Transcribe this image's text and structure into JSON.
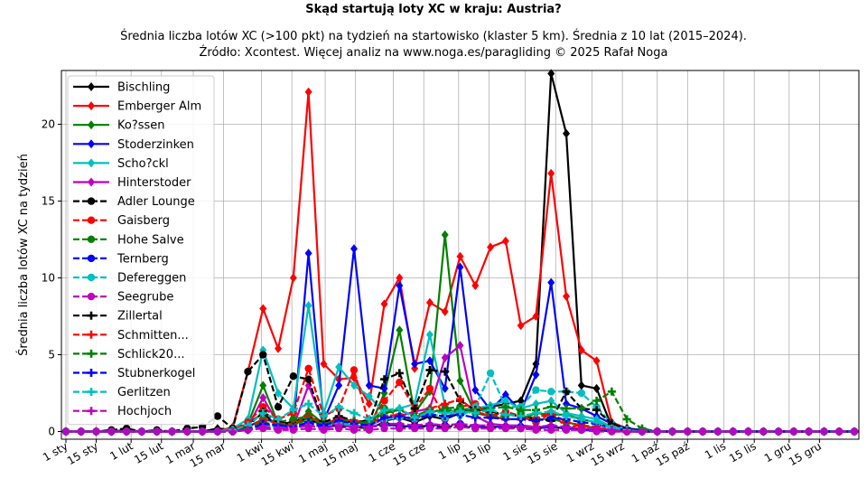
{
  "chart_data": {
    "type": "line",
    "title": "Skąd startują loty XC w kraju: Austria?",
    "subtitle_lines": [
      "Średnia liczba lotów XC (>100 pkt) na tydzień na startowisko (klaster 5 km). Średnia z 10 lat (2015–2024).",
      "Źródło: Xcontest. Więcej analiz na www.noga.es/paragliding © 2025 Rafał Noga"
    ],
    "xlabel": "",
    "ylabel": "Średnia liczba lotów XC na tydzień",
    "x_range": [
      0,
      52
    ],
    "ylim": [
      -0.5,
      23.5
    ],
    "y_ticks": [
      0,
      5,
      10,
      15,
      20
    ],
    "x_ticks": [
      {
        "week": 0,
        "label": "1 sty"
      },
      {
        "week": 2,
        "label": "15 sty"
      },
      {
        "week": 4.3,
        "label": "1 lut"
      },
      {
        "week": 6.3,
        "label": "15 lut"
      },
      {
        "week": 8.4,
        "label": "1 mar"
      },
      {
        "week": 10.4,
        "label": "15 mar"
      },
      {
        "week": 12.9,
        "label": "1 kwi"
      },
      {
        "week": 14.9,
        "label": "15 kwi"
      },
      {
        "week": 17.1,
        "label": "1 maj"
      },
      {
        "week": 19.1,
        "label": "15 maj"
      },
      {
        "week": 21.6,
        "label": "1 cze"
      },
      {
        "week": 23.6,
        "label": "15 cze"
      },
      {
        "week": 25.9,
        "label": "1 lip"
      },
      {
        "week": 27.9,
        "label": "15 lip"
      },
      {
        "week": 30.3,
        "label": "1 sie"
      },
      {
        "week": 32.3,
        "label": "15 sie"
      },
      {
        "week": 34.7,
        "label": "1 wrz"
      },
      {
        "week": 36.7,
        "label": "15 wrz"
      },
      {
        "week": 39,
        "label": "1 paź"
      },
      {
        "week": 41,
        "label": "15 paź"
      },
      {
        "week": 43.4,
        "label": "1 lis"
      },
      {
        "week": 45.4,
        "label": "15 lis"
      },
      {
        "week": 47.7,
        "label": "1 gru"
      },
      {
        "week": 49.7,
        "label": "15 gru"
      }
    ],
    "grid": true,
    "legend_position": "top-left",
    "x_weeks": [
      0,
      1,
      2,
      3,
      4,
      5,
      6,
      7,
      8,
      9,
      10,
      11,
      12,
      13,
      14,
      15,
      16,
      17,
      18,
      19,
      20,
      21,
      22,
      23,
      24,
      25,
      26,
      27,
      28,
      29,
      30,
      31,
      32,
      33,
      34,
      35,
      36,
      37,
      38,
      39,
      40,
      41,
      42,
      43,
      44,
      45,
      46,
      47,
      48,
      49,
      50,
      51,
      52
    ],
    "series": [
      {
        "name": "Bischling",
        "color": "#000000",
        "marker": "diamond",
        "dash": false,
        "values": [
          0,
          0,
          0,
          0,
          0.1,
          0,
          0,
          0,
          0,
          0,
          0.2,
          0.1,
          0.5,
          1.2,
          0.3,
          0.7,
          0.8,
          0.4,
          0.9,
          0.5,
          0.8,
          0.7,
          0.9,
          0.6,
          1.0,
          0.8,
          1.2,
          1.5,
          1.6,
          1.8,
          2.0,
          4.4,
          23.3,
          19.4,
          3.0,
          2.8,
          0.3,
          0.1,
          0.1,
          0,
          0,
          0,
          0,
          0,
          0,
          0,
          0,
          0,
          0,
          0,
          0,
          0,
          0
        ]
      },
      {
        "name": "Emberger Alm",
        "color": "#ff0000",
        "marker": "diamond",
        "dash": false,
        "values": [
          0,
          0,
          0,
          0,
          0,
          0,
          0,
          0,
          0,
          0,
          0,
          0.3,
          3.9,
          8.0,
          5.4,
          10.0,
          22.1,
          4.4,
          3.4,
          3.5,
          1.8,
          8.3,
          10.0,
          4.1,
          8.4,
          7.8,
          11.4,
          9.5,
          12.0,
          12.4,
          6.9,
          7.5,
          16.8,
          8.8,
          5.3,
          4.6,
          0.6,
          0.2,
          0.1,
          0,
          0,
          0,
          0,
          0,
          0,
          0,
          0,
          0,
          0,
          0,
          0,
          0,
          0
        ]
      },
      {
        "name": "Ko?ssen",
        "color": "#008000",
        "marker": "diamond",
        "dash": false,
        "values": [
          0,
          0,
          0,
          0,
          0,
          0,
          0,
          0,
          0,
          0,
          0,
          0.1,
          0.5,
          3.0,
          0.5,
          0.3,
          1.3,
          0.5,
          0.6,
          0.3,
          0.2,
          2.5,
          6.6,
          1.2,
          2.6,
          12.8,
          3.3,
          1.2,
          1.0,
          0.8,
          0.8,
          1.2,
          1.1,
          1.1,
          0.8,
          0.6,
          0.3,
          0.1,
          0,
          0,
          0,
          0,
          0,
          0,
          0,
          0,
          0,
          0,
          0,
          0,
          0,
          0,
          0
        ]
      },
      {
        "name": "Stoderzinken",
        "color": "#0000ff",
        "marker": "diamond",
        "dash": false,
        "values": [
          0,
          0,
          0,
          0,
          0,
          0,
          0,
          0,
          0,
          0,
          0,
          0.1,
          0.3,
          0.8,
          0.6,
          0.3,
          11.6,
          0.7,
          3.0,
          11.9,
          3.0,
          2.8,
          9.5,
          4.4,
          4.6,
          2.8,
          10.7,
          2.7,
          1.4,
          2.4,
          1.3,
          3.7,
          9.7,
          1.8,
          1.5,
          1.0,
          0.5,
          0.2,
          0.1,
          0,
          0,
          0,
          0,
          0,
          0,
          0,
          0,
          0,
          0,
          0,
          0,
          0,
          0
        ]
      },
      {
        "name": "Scho?ckl",
        "color": "#00bfbf",
        "marker": "diamond",
        "dash": false,
        "values": [
          0,
          0,
          0,
          0,
          0,
          0,
          0,
          0,
          0,
          0,
          0,
          0.2,
          0.8,
          5.3,
          2.5,
          1.5,
          8.2,
          1.2,
          4.2,
          3.0,
          2.3,
          1.2,
          1.5,
          1.8,
          6.3,
          1.7,
          1.0,
          1.5,
          1.7,
          2.0,
          1.5,
          1.8,
          2.0,
          1.2,
          1.0,
          0.8,
          0.3,
          0.1,
          0,
          0,
          0,
          0,
          0,
          0,
          0,
          0,
          0,
          0,
          0,
          0,
          0,
          0,
          0
        ]
      },
      {
        "name": "Hinterstoder",
        "color": "#bf00bf",
        "marker": "diamond",
        "dash": false,
        "values": [
          0,
          0,
          0,
          0,
          0,
          0,
          0,
          0,
          0,
          0,
          0,
          0.1,
          0.3,
          2.2,
          0.5,
          0.3,
          3.0,
          0.5,
          0.4,
          0.3,
          0.4,
          0.8,
          1.0,
          1.3,
          1.5,
          4.8,
          5.6,
          1.0,
          0.5,
          0.4,
          0.4,
          0.3,
          0.3,
          0.2,
          0.2,
          0.1,
          0.1,
          0,
          0,
          0,
          0,
          0,
          0,
          0,
          0,
          0,
          0,
          0,
          0,
          0,
          0,
          0,
          0
        ]
      },
      {
        "name": "Adler Lounge",
        "color": "#000000",
        "marker": "circle",
        "dash": true,
        "values": [
          0,
          0,
          0,
          0.1,
          0.2,
          0,
          0.1,
          0,
          0.2,
          0.3,
          1.0,
          0.2,
          3.9,
          5.0,
          1.6,
          3.6,
          3.4,
          0.5,
          0.3,
          0.3,
          0.2,
          0.6,
          0.3,
          0.4,
          0.3,
          0.3,
          0.4,
          0.2,
          0.3,
          0.3,
          0.2,
          0.2,
          0.3,
          0.2,
          0.1,
          0.1,
          0.1,
          0,
          0,
          0,
          0,
          0,
          0,
          0,
          0,
          0,
          0,
          0,
          0,
          0,
          0,
          0,
          0
        ]
      },
      {
        "name": "Gaisberg",
        "color": "#ff0000",
        "marker": "circle",
        "dash": true,
        "values": [
          0,
          0,
          0,
          0,
          0,
          0,
          0,
          0,
          0,
          0,
          0,
          0.1,
          0.6,
          1.6,
          0.8,
          1.2,
          4.1,
          1.0,
          1.5,
          4.0,
          0.5,
          2.0,
          3.2,
          1.5,
          2.8,
          0.8,
          1.6,
          1.8,
          1.0,
          1.3,
          1.0,
          0.6,
          1.2,
          0.3,
          0.4,
          0.2,
          0.1,
          0,
          0,
          0,
          0,
          0,
          0,
          0,
          0,
          0,
          0,
          0,
          0,
          0,
          0,
          0,
          0
        ]
      },
      {
        "name": "Hohe Salve",
        "color": "#008000",
        "marker": "circle",
        "dash": true,
        "values": [
          0,
          0,
          0,
          0,
          0,
          0,
          0,
          0,
          0,
          0,
          0,
          0.1,
          0.3,
          0.8,
          0.6,
          0.8,
          1.0,
          0.6,
          0.8,
          0.6,
          0.5,
          1.5,
          1.0,
          0.8,
          1.2,
          1.5,
          1.6,
          1.2,
          1.0,
          1.0,
          1.2,
          0.8,
          0.8,
          0.6,
          0.4,
          0.2,
          0.1,
          0,
          0,
          0,
          0,
          0,
          0,
          0,
          0,
          0,
          0,
          0,
          0,
          0,
          0,
          0,
          0
        ]
      },
      {
        "name": "Ternberg",
        "color": "#0000ff",
        "marker": "circle",
        "dash": true,
        "values": [
          0,
          0,
          0,
          0,
          0,
          0,
          0,
          0,
          0,
          0,
          0,
          0,
          0.2,
          0.5,
          0.3,
          0.2,
          0.5,
          0.3,
          0.4,
          0.3,
          0.3,
          0.4,
          0.4,
          0.3,
          0.4,
          0.4,
          0.5,
          0.3,
          0.3,
          0.3,
          0.3,
          0.2,
          0.3,
          0.2,
          0.1,
          0.1,
          0,
          0,
          0,
          0,
          0,
          0,
          0,
          0,
          0,
          0,
          0,
          0,
          0,
          0,
          0,
          0,
          0
        ]
      },
      {
        "name": "Defereggen",
        "color": "#00bfbf",
        "marker": "circle",
        "dash": true,
        "values": [
          0,
          0,
          0,
          0,
          0,
          0,
          0,
          0,
          0,
          0,
          0,
          0,
          0.2,
          0.4,
          0.3,
          0.3,
          0.6,
          0.4,
          0.5,
          0.4,
          0.4,
          0.8,
          0.9,
          0.8,
          1.2,
          0.9,
          1.4,
          1.6,
          3.8,
          1.6,
          1.6,
          2.7,
          2.6,
          2.6,
          2.5,
          1.6,
          0.5,
          0.1,
          0,
          0,
          0,
          0,
          0,
          0,
          0,
          0,
          0,
          0,
          0,
          0,
          0,
          0,
          0
        ]
      },
      {
        "name": "Seegrube",
        "color": "#bf00bf",
        "marker": "circle",
        "dash": true,
        "values": [
          0,
          0,
          0,
          0,
          0,
          0,
          0,
          0,
          0,
          0,
          0,
          0,
          0.1,
          0.2,
          0.1,
          0.1,
          0.2,
          0.1,
          0.2,
          0.1,
          0.1,
          0.2,
          0.2,
          0.2,
          0.2,
          0.2,
          0.3,
          0.2,
          0.2,
          0.2,
          0.2,
          0.1,
          0.1,
          0.1,
          0.1,
          0,
          0,
          0,
          0,
          0,
          0,
          0,
          0,
          0,
          0,
          0,
          0,
          0,
          0,
          0,
          0,
          0,
          0
        ]
      },
      {
        "name": "Zillertal",
        "color": "#000000",
        "marker": "plus",
        "dash": true,
        "values": [
          0,
          0,
          0,
          0,
          0,
          0,
          0,
          0,
          0,
          0,
          0,
          0.1,
          0.3,
          1.3,
          0.6,
          0.5,
          0.9,
          0.6,
          1.0,
          0.7,
          0.6,
          3.4,
          3.8,
          1.5,
          4.0,
          3.9,
          2.0,
          1.4,
          1.3,
          1.1,
          1.0,
          0.8,
          0.7,
          2.6,
          1.5,
          1.4,
          0.5,
          0.2,
          0,
          0,
          0,
          0,
          0,
          0,
          0,
          0,
          0,
          0,
          0,
          0,
          0,
          0,
          0
        ]
      },
      {
        "name": "Schmitten...",
        "color": "#ff0000",
        "marker": "plus",
        "dash": true,
        "values": [
          0,
          0,
          0,
          0,
          0,
          0,
          0,
          0,
          0,
          0,
          0,
          0,
          0.2,
          0.8,
          0.5,
          0.5,
          1.0,
          0.5,
          0.8,
          0.7,
          0.5,
          1.0,
          1.1,
          0.8,
          1.5,
          1.8,
          2.1,
          1.3,
          1.0,
          0.8,
          0.8,
          0.9,
          1.2,
          0.6,
          0.4,
          0.3,
          0.1,
          0,
          0,
          0,
          0,
          0,
          0,
          0,
          0,
          0,
          0,
          0,
          0,
          0,
          0,
          0,
          0
        ]
      },
      {
        "name": "Schlick20...",
        "color": "#008000",
        "marker": "plus",
        "dash": true,
        "values": [
          0,
          0,
          0,
          0,
          0,
          0,
          0,
          0,
          0,
          0,
          0,
          0,
          0.2,
          0.6,
          0.4,
          0.4,
          0.8,
          0.5,
          0.7,
          0.6,
          0.6,
          1.2,
          1.4,
          1.0,
          1.4,
          1.3,
          1.5,
          1.3,
          1.5,
          1.6,
          1.4,
          1.4,
          1.6,
          1.5,
          1.5,
          2.0,
          2.6,
          0.8,
          0.2,
          0,
          0,
          0,
          0,
          0,
          0,
          0,
          0,
          0,
          0,
          0,
          0,
          0,
          0
        ]
      },
      {
        "name": "Stubnerkogel",
        "color": "#0000ff",
        "marker": "plus",
        "dash": true,
        "values": [
          0,
          0,
          0,
          0,
          0,
          0,
          0,
          0,
          0,
          0,
          0,
          0,
          0.1,
          0.5,
          0.4,
          0.3,
          0.6,
          0.4,
          0.7,
          0.5,
          0.4,
          0.9,
          1.0,
          0.8,
          1.1,
          1.0,
          1.1,
          0.9,
          0.9,
          0.8,
          0.8,
          0.7,
          0.9,
          0.8,
          0.6,
          0.5,
          0.2,
          0.1,
          0,
          0,
          0,
          0,
          0,
          0,
          0,
          0,
          0,
          0,
          0,
          0,
          0,
          0,
          0
        ]
      },
      {
        "name": "Gerlitzen",
        "color": "#00bfbf",
        "marker": "plus",
        "dash": true,
        "values": [
          0,
          0,
          0,
          0,
          0,
          0,
          0,
          0,
          0,
          0,
          0,
          0.1,
          0.4,
          1.2,
          0.8,
          1.4,
          1.8,
          1.0,
          1.6,
          1.2,
          0.8,
          1.4,
          1.5,
          0.9,
          1.3,
          1.2,
          1.3,
          1.2,
          1.4,
          1.1,
          1.0,
          1.2,
          1.3,
          1.0,
          0.8,
          0.6,
          0.2,
          0.1,
          0,
          0,
          0,
          0,
          0,
          0,
          0,
          0,
          0,
          0,
          0,
          0,
          0,
          0,
          0
        ]
      },
      {
        "name": "Hochjoch",
        "color": "#bf00bf",
        "marker": "plus",
        "dash": true,
        "values": [
          0,
          0,
          0,
          0,
          0,
          0,
          0,
          0,
          0,
          0,
          0,
          0,
          0.1,
          0.3,
          0.2,
          0.2,
          0.4,
          0.2,
          0.4,
          0.3,
          0.3,
          0.5,
          0.5,
          0.4,
          0.5,
          0.4,
          0.5,
          0.4,
          0.4,
          0.4,
          0.3,
          0.3,
          0.4,
          0.3,
          0.2,
          0.2,
          0.1,
          0,
          0,
          0,
          0,
          0,
          0,
          0,
          0,
          0,
          0,
          0,
          0,
          0,
          0,
          0,
          0
        ]
      }
    ]
  }
}
